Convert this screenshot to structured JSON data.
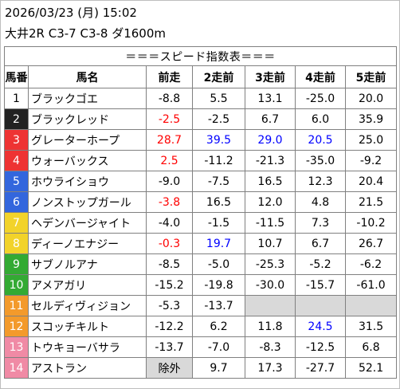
{
  "header": {
    "datetime": "2026/03/23 (月) 15:02",
    "race": "大井2R C3-7 C3-8 ダ1600m"
  },
  "table": {
    "title": "＝＝＝スピード指数表＝＝＝",
    "columns": [
      "馬番",
      "馬名",
      "前走",
      "2走前",
      "3走前",
      "4走前",
      "5走前"
    ],
    "rows": [
      {
        "no": "1",
        "name": "ブラックゴエ",
        "bg": "#ffffff",
        "fg": "#000000",
        "vals": [
          {
            "v": "-8.8"
          },
          {
            "v": "5.5"
          },
          {
            "v": "13.1"
          },
          {
            "v": "-25.0"
          },
          {
            "v": "20.0"
          }
        ]
      },
      {
        "no": "2",
        "name": "ブラックレッド",
        "bg": "#222222",
        "fg": "#ffffff",
        "vals": [
          {
            "v": "-2.5",
            "c": "red"
          },
          {
            "v": "-2.5"
          },
          {
            "v": "6.7"
          },
          {
            "v": "6.0"
          },
          {
            "v": "35.9"
          }
        ]
      },
      {
        "no": "3",
        "name": "グレーターホープ",
        "bg": "#ee3333",
        "fg": "#ffffff",
        "vals": [
          {
            "v": "28.7",
            "c": "red",
            "b": true
          },
          {
            "v": "39.5",
            "c": "blue",
            "b": true
          },
          {
            "v": "29.0",
            "c": "blue"
          },
          {
            "v": "20.5",
            "c": "blue"
          },
          {
            "v": "25.0"
          }
        ]
      },
      {
        "no": "4",
        "name": "ウォーバックス",
        "bg": "#ee3333",
        "fg": "#ffffff",
        "vals": [
          {
            "v": "2.5",
            "c": "red"
          },
          {
            "v": "-11.2"
          },
          {
            "v": "-21.3"
          },
          {
            "v": "-35.0"
          },
          {
            "v": "-9.2"
          }
        ]
      },
      {
        "no": "5",
        "name": "ホウライショウ",
        "bg": "#3366dd",
        "fg": "#ffffff",
        "vals": [
          {
            "v": "-9.0"
          },
          {
            "v": "-7.5"
          },
          {
            "v": "16.5"
          },
          {
            "v": "12.3"
          },
          {
            "v": "20.4"
          }
        ]
      },
      {
        "no": "6",
        "name": "ノンストップガール",
        "bg": "#3366dd",
        "fg": "#ffffff",
        "vals": [
          {
            "v": "-3.8",
            "c": "red"
          },
          {
            "v": "16.5"
          },
          {
            "v": "12.0"
          },
          {
            "v": "4.8"
          },
          {
            "v": "21.5"
          }
        ]
      },
      {
        "no": "7",
        "name": "ヘデンバージャイト",
        "bg": "#f2d32a",
        "fg": "#ffffff",
        "vals": [
          {
            "v": "-4.0"
          },
          {
            "v": "-1.5"
          },
          {
            "v": "-11.5"
          },
          {
            "v": "7.3"
          },
          {
            "v": "-10.2"
          }
        ]
      },
      {
        "no": "8",
        "name": "ディーノエナジー",
        "bg": "#f2d32a",
        "fg": "#ffffff",
        "vals": [
          {
            "v": "-0.3",
            "c": "red"
          },
          {
            "v": "19.7",
            "c": "blue"
          },
          {
            "v": "10.7"
          },
          {
            "v": "6.7"
          },
          {
            "v": "26.7"
          }
        ]
      },
      {
        "no": "9",
        "name": "サブノルアナ",
        "bg": "#33aa33",
        "fg": "#ffffff",
        "vals": [
          {
            "v": "-8.5"
          },
          {
            "v": "-5.0"
          },
          {
            "v": "-25.3"
          },
          {
            "v": "-5.2"
          },
          {
            "v": "-6.2"
          }
        ]
      },
      {
        "no": "10",
        "name": "アメアガリ",
        "bg": "#33aa33",
        "fg": "#ffffff",
        "vals": [
          {
            "v": "-15.2"
          },
          {
            "v": "-19.8"
          },
          {
            "v": "-30.0"
          },
          {
            "v": "-15.7"
          },
          {
            "v": "-61.0"
          }
        ]
      },
      {
        "no": "11",
        "name": "セルディヴィジョン",
        "bg": "#f39a2b",
        "fg": "#ffffff",
        "vals": [
          {
            "v": "-5.3"
          },
          {
            "v": "-13.7"
          },
          {
            "v": "",
            "e": true
          },
          {
            "v": "",
            "e": true
          },
          {
            "v": "",
            "e": true
          }
        ]
      },
      {
        "no": "12",
        "name": "スコッチキルト",
        "bg": "#f39a2b",
        "fg": "#ffffff",
        "vals": [
          {
            "v": "-12.2"
          },
          {
            "v": "6.2"
          },
          {
            "v": "11.8"
          },
          {
            "v": "24.5",
            "c": "blue"
          },
          {
            "v": "31.5"
          }
        ]
      },
      {
        "no": "13",
        "name": "トウキョーバサラ",
        "bg": "#f08aa5",
        "fg": "#ffffff",
        "vals": [
          {
            "v": "-13.7"
          },
          {
            "v": "-7.0"
          },
          {
            "v": "-8.3"
          },
          {
            "v": "-12.5"
          },
          {
            "v": "6.8"
          }
        ]
      },
      {
        "no": "14",
        "name": "アストラン",
        "bg": "#f08aa5",
        "fg": "#ffffff",
        "vals": [
          {
            "v": "除外",
            "g": true
          },
          {
            "v": "9.7"
          },
          {
            "v": "17.3"
          },
          {
            "v": "-27.7"
          },
          {
            "v": "52.1"
          }
        ]
      }
    ]
  }
}
